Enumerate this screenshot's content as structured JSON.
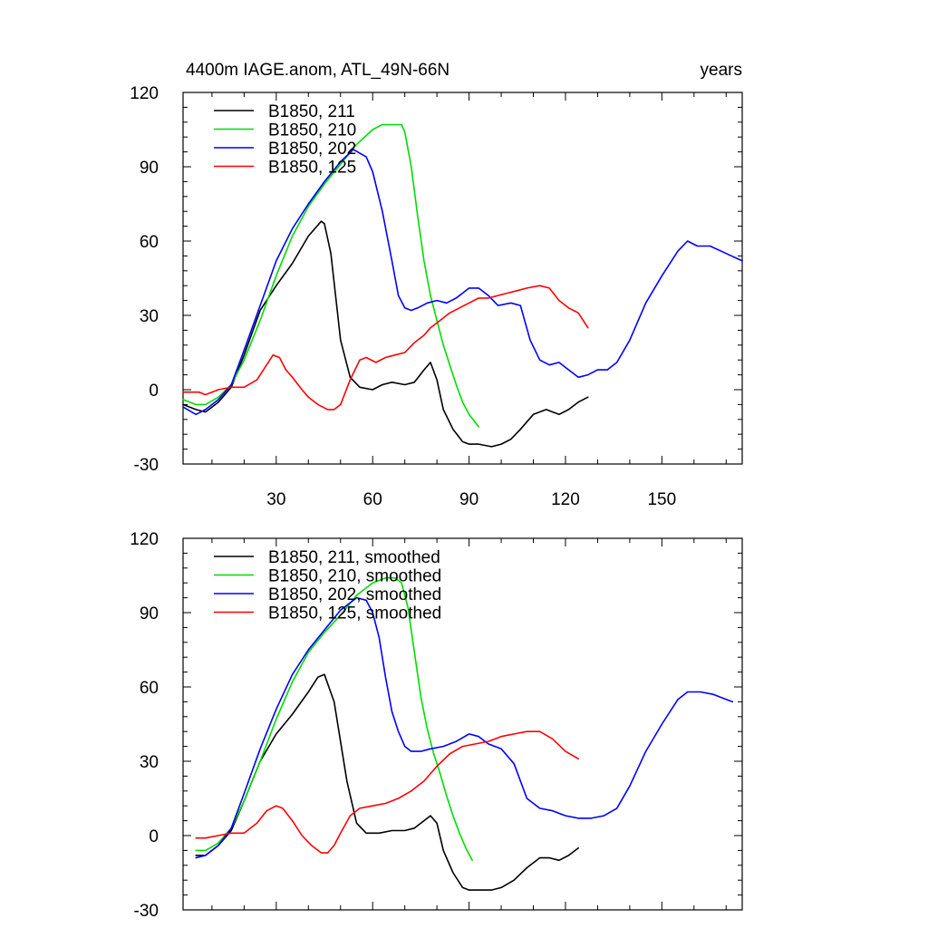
{
  "chart_data": [
    {
      "type": "line",
      "title": "4400m IAGE.anom, ATL_49N-66N",
      "title_right": "years",
      "xlim": [
        1,
        175
      ],
      "ylim": [
        -30,
        120
      ],
      "yticks": [
        -30,
        0,
        30,
        60,
        90,
        120
      ],
      "xticks": [
        30,
        60,
        90,
        120,
        150
      ],
      "xticklabels": [
        "30",
        "60",
        "90",
        "120",
        "150"
      ],
      "legend_position": "top-left",
      "series": [
        {
          "name": "B1850, 211",
          "color": "#000000",
          "x": [
            1,
            5,
            8,
            12,
            16,
            20,
            25,
            30,
            35,
            40,
            44,
            45,
            47,
            50,
            53,
            56,
            60,
            63,
            66,
            70,
            73,
            76,
            78,
            80,
            82,
            85,
            88,
            90,
            93,
            97,
            100,
            103,
            106,
            110,
            114,
            116,
            118,
            121,
            124,
            127
          ],
          "y": [
            -6,
            -8,
            -9,
            -5,
            1,
            14,
            32,
            42,
            51,
            62,
            68,
            67,
            55,
            20,
            5,
            1,
            0,
            2,
            3,
            2,
            3,
            8,
            11,
            4,
            -8,
            -16,
            -21,
            -22,
            -22,
            -23,
            -22,
            -20,
            -16,
            -10,
            -8,
            -9,
            -10,
            -8,
            -5,
            -3
          ]
        },
        {
          "name": "B1850, 210",
          "color": "#00dd00",
          "x": [
            1,
            5,
            8,
            12,
            16,
            20,
            25,
            30,
            35,
            40,
            45,
            50,
            55,
            60,
            63,
            66,
            69,
            70,
            72,
            74,
            76,
            78,
            80,
            82,
            84,
            86,
            88,
            90,
            93
          ],
          "y": [
            -4,
            -6,
            -6,
            -3,
            2,
            12,
            28,
            46,
            62,
            74,
            83,
            91,
            99,
            105,
            107,
            107,
            107,
            104,
            90,
            70,
            52,
            38,
            28,
            18,
            10,
            2,
            -5,
            -10,
            -15
          ]
        },
        {
          "name": "B1850, 202",
          "color": "#0000ff",
          "x": [
            1,
            5,
            8,
            12,
            16,
            20,
            25,
            30,
            35,
            40,
            45,
            50,
            54,
            58,
            60,
            63,
            66,
            68,
            70,
            72,
            74,
            77,
            80,
            83,
            86,
            90,
            93,
            96,
            99,
            103,
            106,
            109,
            112,
            115,
            118,
            121,
            124,
            127,
            130,
            133,
            136,
            140,
            145,
            150,
            155,
            158,
            161,
            165,
            170,
            175
          ],
          "y": [
            -7,
            -10,
            -8,
            -4,
            2,
            16,
            34,
            52,
            65,
            75,
            84,
            92,
            97,
            94,
            88,
            72,
            52,
            38,
            33,
            32,
            33,
            35,
            36,
            35,
            37,
            41,
            41,
            38,
            34,
            35,
            34,
            20,
            12,
            10,
            11,
            8,
            5,
            6,
            8,
            8,
            11,
            20,
            35,
            46,
            56,
            60,
            58,
            58,
            55,
            52
          ]
        },
        {
          "name": "B1850, 125",
          "color": "#ff0000",
          "x": [
            1,
            4,
            6,
            8,
            12,
            16,
            20,
            24,
            27,
            29,
            31,
            33,
            35,
            38,
            40,
            43,
            46,
            48,
            50,
            53,
            56,
            58,
            61,
            64,
            67,
            70,
            73,
            76,
            78,
            81,
            84,
            87,
            90,
            93,
            96,
            99,
            102,
            105,
            108,
            112,
            115,
            118,
            121,
            124,
            127
          ],
          "y": [
            -1,
            -1,
            -1,
            -2,
            0,
            1,
            1,
            4,
            10,
            14,
            13,
            8,
            5,
            0,
            -3,
            -6,
            -8,
            -8,
            -6,
            4,
            12,
            13,
            11,
            13,
            14,
            15,
            19,
            22,
            25,
            28,
            31,
            33,
            35,
            37,
            37,
            38,
            39,
            40,
            41,
            42,
            41,
            36,
            33,
            31,
            25
          ]
        }
      ]
    },
    {
      "type": "line",
      "title": "",
      "xlim": [
        1,
        175
      ],
      "ylim": [
        -30,
        120
      ],
      "yticks": [
        -30,
        0,
        30,
        60,
        90,
        120
      ],
      "xticks": [
        30,
        60,
        90,
        120,
        150
      ],
      "xticklabels": [],
      "legend_position": "top-left",
      "series": [
        {
          "name": "B1850, 211, smoothed",
          "color": "#000000",
          "x": [
            5,
            8,
            12,
            16,
            20,
            25,
            30,
            35,
            40,
            43,
            45,
            48,
            52,
            55,
            58,
            62,
            66,
            70,
            73,
            76,
            78,
            80,
            82,
            85,
            88,
            90,
            94,
            97,
            100,
            104,
            108,
            112,
            115,
            118,
            121,
            124
          ],
          "y": [
            -8,
            -8,
            -4,
            2,
            14,
            30,
            41,
            49,
            58,
            64,
            65,
            54,
            22,
            5,
            1,
            1,
            2,
            2,
            3,
            6,
            8,
            5,
            -6,
            -15,
            -21,
            -22,
            -22,
            -22,
            -21,
            -18,
            -13,
            -9,
            -9,
            -10,
            -8,
            -5
          ]
        },
        {
          "name": "B1850, 210, smoothed",
          "color": "#00dd00",
          "x": [
            5,
            8,
            12,
            16,
            20,
            25,
            30,
            35,
            40,
            45,
            50,
            55,
            60,
            64,
            67,
            69,
            71,
            73,
            75,
            77,
            79,
            81,
            83,
            85,
            87,
            89,
            91
          ],
          "y": [
            -6,
            -6,
            -3,
            3,
            14,
            30,
            47,
            62,
            74,
            82,
            89,
            97,
            102,
            104,
            104,
            102,
            92,
            74,
            56,
            43,
            33,
            25,
            16,
            8,
            1,
            -5,
            -10
          ]
        },
        {
          "name": "B1850, 202, smoothed",
          "color": "#0000ff",
          "x": [
            5,
            8,
            12,
            16,
            20,
            25,
            30,
            35,
            40,
            45,
            50,
            55,
            58,
            60,
            62,
            64,
            66,
            68,
            70,
            72,
            75,
            78,
            82,
            86,
            90,
            93,
            96,
            100,
            104,
            108,
            112,
            116,
            120,
            124,
            128,
            132,
            136,
            140,
            145,
            150,
            155,
            158,
            162,
            166,
            170,
            172
          ],
          "y": [
            -9,
            -8,
            -4,
            3,
            17,
            35,
            51,
            65,
            75,
            83,
            91,
            96,
            95,
            90,
            80,
            64,
            50,
            42,
            36,
            34,
            34,
            35,
            36,
            38,
            41,
            40,
            37,
            35,
            29,
            15,
            11,
            10,
            8,
            7,
            7,
            8,
            11,
            20,
            34,
            45,
            55,
            58,
            58,
            57,
            55,
            54
          ]
        },
        {
          "name": "B1850, 125, smoothed",
          "color": "#ff0000",
          "x": [
            5,
            8,
            12,
            16,
            20,
            24,
            27,
            30,
            32,
            35,
            38,
            41,
            44,
            46,
            48,
            50,
            53,
            56,
            60,
            64,
            68,
            72,
            76,
            80,
            84,
            88,
            92,
            96,
            100,
            104,
            108,
            112,
            116,
            120,
            124
          ],
          "y": [
            -1,
            -1,
            0,
            1,
            1,
            5,
            10,
            12,
            11,
            6,
            0,
            -4,
            -7,
            -7,
            -4,
            1,
            8,
            11,
            12,
            13,
            15,
            18,
            22,
            28,
            33,
            36,
            37,
            38,
            40,
            41,
            42,
            42,
            39,
            34,
            31
          ]
        }
      ]
    }
  ]
}
